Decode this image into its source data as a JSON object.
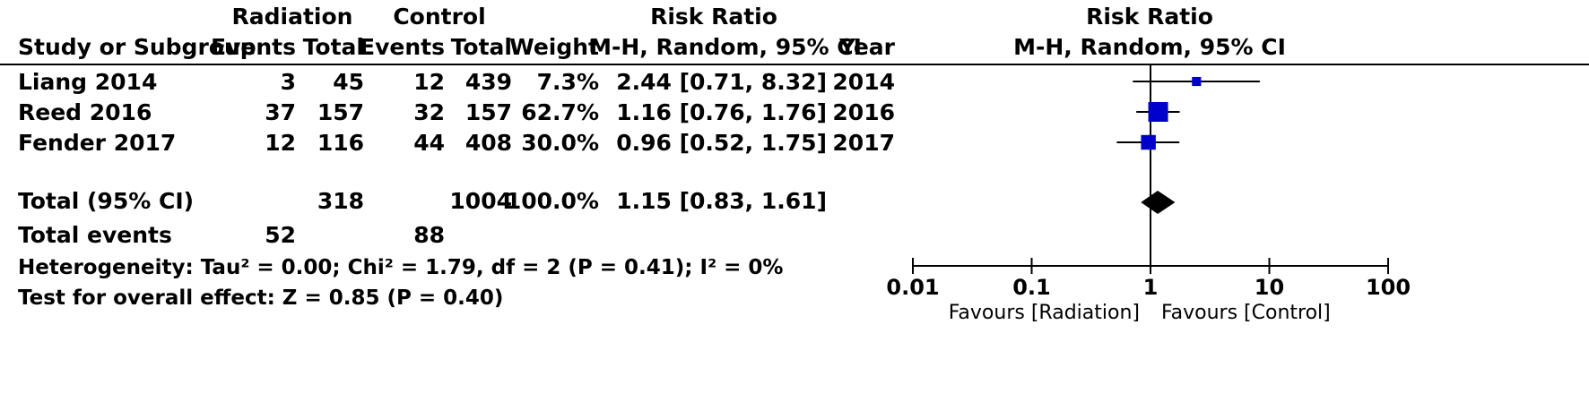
{
  "header": {
    "radiation": "Radiation",
    "control": "Control",
    "risk_ratio": "Risk Ratio",
    "plot_title": "Risk Ratio",
    "study": "Study or Subgroup",
    "events": "Events",
    "total": "Total",
    "weight": "Weight",
    "method": "M-H, Random, 95% CI",
    "year": "Year",
    "plot_method": "M-H, Random, 95% CI"
  },
  "rows": [
    {
      "study": "Liang 2014",
      "r_events": "3",
      "r_total": "45",
      "c_events": "12",
      "c_total": "439",
      "weight": "7.3%",
      "ci": "2.44 [0.71, 8.32]",
      "year": "2014"
    },
    {
      "study": "Reed 2016",
      "r_events": "37",
      "r_total": "157",
      "c_events": "32",
      "c_total": "157",
      "weight": "62.7%",
      "ci": "1.16 [0.76, 1.76]",
      "year": "2016"
    },
    {
      "study": "Fender 2017",
      "r_events": "12",
      "r_total": "116",
      "c_events": "44",
      "c_total": "408",
      "weight": "30.0%",
      "ci": "0.96 [0.52, 1.75]",
      "year": "2017"
    }
  ],
  "total": {
    "label": "Total (95% CI)",
    "r_total": "318",
    "c_total": "1004",
    "weight": "100.0%",
    "ci": "1.15 [0.83, 1.61]"
  },
  "events": {
    "label": "Total events",
    "r": "52",
    "c": "88"
  },
  "heterogeneity": "Heterogeneity: Tau² = 0.00; Chi² = 1.79, df = 2 (P = 0.41); I² = 0%",
  "overall": "Test for overall effect: Z = 0.85 (P = 0.40)",
  "chart_data": {
    "type": "scatter",
    "scale": "log",
    "xlim": [
      0.01,
      100
    ],
    "ticks": [
      0.01,
      0.1,
      1,
      10,
      100
    ],
    "tick_labels": [
      "0.01",
      "0.1",
      "1",
      "10",
      "100"
    ],
    "favours_left": "Favours [Radiation]",
    "favours_right": "Favours [Control]",
    "studies": [
      {
        "study": "Liang 2014",
        "rr": 2.44,
        "lower": 0.71,
        "upper": 8.32,
        "weight": 7.3
      },
      {
        "study": "Reed 2016",
        "rr": 1.16,
        "lower": 0.76,
        "upper": 1.76,
        "weight": 62.7
      },
      {
        "study": "Fender 2017",
        "rr": 0.96,
        "lower": 0.52,
        "upper": 1.75,
        "weight": 30.0
      }
    ],
    "pooled": {
      "rr": 1.15,
      "lower": 0.83,
      "upper": 1.61
    },
    "colors": {
      "box": "#0000cc",
      "diamond": "#000000"
    }
  }
}
